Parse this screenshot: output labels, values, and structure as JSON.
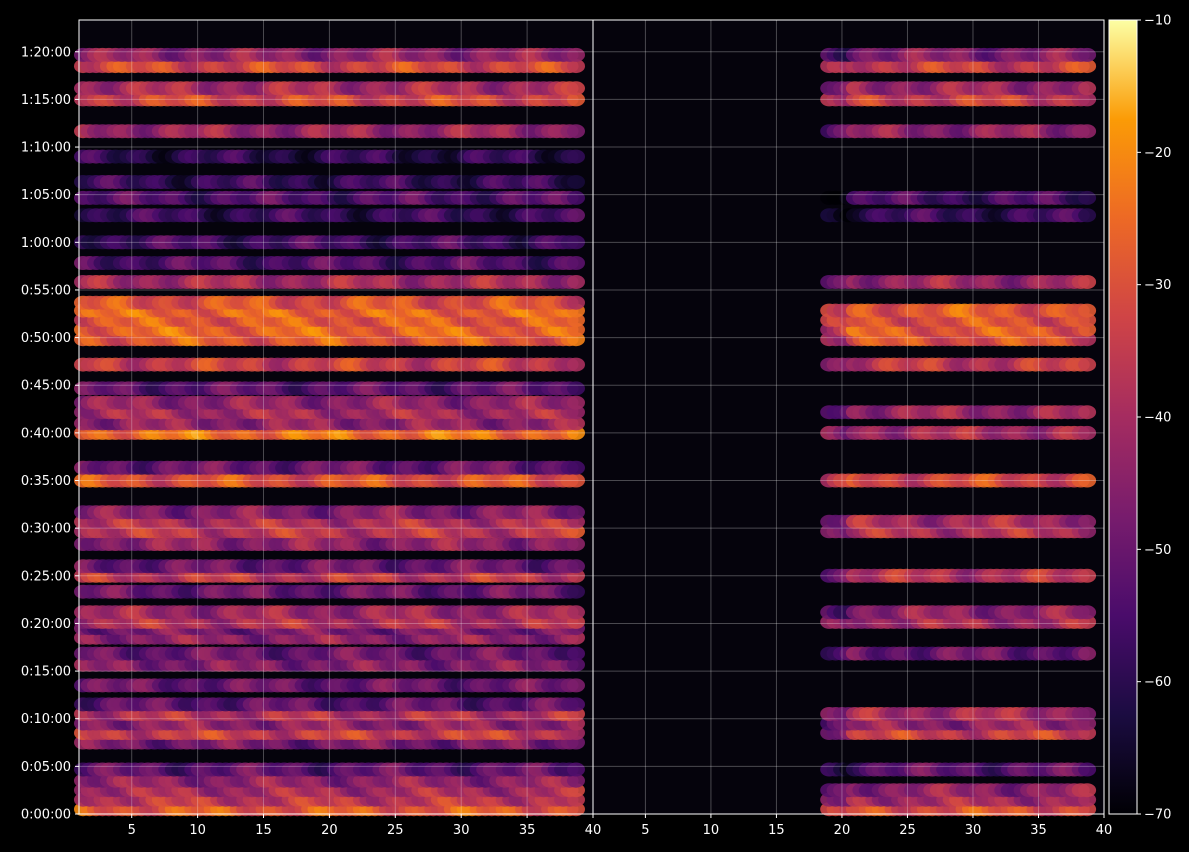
{
  "chart_data": {
    "type": "heatmap",
    "colormap": "inferno",
    "background": "#000000",
    "grid": true,
    "colorbar": {
      "position": "right",
      "range": [
        -70,
        -10
      ],
      "ticks": [
        {
          "value": -10,
          "label": "−10"
        },
        {
          "value": -20,
          "label": "−20"
        },
        {
          "value": -30,
          "label": "−30"
        },
        {
          "value": -40,
          "label": "−40"
        },
        {
          "value": -50,
          "label": "−50"
        },
        {
          "value": -60,
          "label": "−60"
        },
        {
          "value": -70,
          "label": "−70"
        }
      ]
    },
    "y_axis": {
      "unit": "time",
      "range_seconds": [
        0,
        5000
      ],
      "ticks": [
        {
          "value": 0,
          "label": "0:00:00"
        },
        {
          "value": 300,
          "label": "0:05:00"
        },
        {
          "value": 600,
          "label": "0:10:00"
        },
        {
          "value": 900,
          "label": "0:15:00"
        },
        {
          "value": 1200,
          "label": "0:20:00"
        },
        {
          "value": 1500,
          "label": "0:25:00"
        },
        {
          "value": 1800,
          "label": "0:30:00"
        },
        {
          "value": 2100,
          "label": "0:35:00"
        },
        {
          "value": 2400,
          "label": "0:40:00"
        },
        {
          "value": 2700,
          "label": "0:45:00"
        },
        {
          "value": 3000,
          "label": "0:50:00"
        },
        {
          "value": 3300,
          "label": "0:55:00"
        },
        {
          "value": 3600,
          "label": "1:00:00"
        },
        {
          "value": 3900,
          "label": "1:05:00"
        },
        {
          "value": 4200,
          "label": "1:10:00"
        },
        {
          "value": 4500,
          "label": "1:15:00"
        },
        {
          "value": 4800,
          "label": "1:20:00"
        }
      ]
    },
    "panels": [
      {
        "name": "left",
        "x_range": [
          1,
          40
        ],
        "x_ticks": [
          {
            "value": 5,
            "label": "5"
          },
          {
            "value": 10,
            "label": "10"
          },
          {
            "value": 15,
            "label": "15"
          },
          {
            "value": 20,
            "label": "20"
          },
          {
            "value": 25,
            "label": "25"
          },
          {
            "value": 30,
            "label": "30"
          },
          {
            "value": 35,
            "label": "35"
          },
          {
            "value": 40,
            "label": "40"
          }
        ],
        "columns": [
          1,
          39
        ],
        "bands": [
          {
            "t": 30,
            "level": -28
          },
          {
            "t": 90,
            "level": -36
          },
          {
            "t": 150,
            "level": -40
          },
          {
            "t": 210,
            "level": -44
          },
          {
            "t": 280,
            "level": -52
          },
          {
            "t": 450,
            "level": -48
          },
          {
            "t": 510,
            "level": -34
          },
          {
            "t": 570,
            "level": -44
          },
          {
            "t": 630,
            "level": -38
          },
          {
            "t": 690,
            "level": -52
          },
          {
            "t": 810,
            "level": -50
          },
          {
            "t": 940,
            "level": -46
          },
          {
            "t": 1010,
            "level": -50
          },
          {
            "t": 1110,
            "level": -44
          },
          {
            "t": 1170,
            "level": -48
          },
          {
            "t": 1210,
            "level": -38
          },
          {
            "t": 1270,
            "level": -42
          },
          {
            "t": 1400,
            "level": -50
          },
          {
            "t": 1500,
            "level": -36
          },
          {
            "t": 1560,
            "level": -50
          },
          {
            "t": 1700,
            "level": -44
          },
          {
            "t": 1780,
            "level": -36
          },
          {
            "t": 1840,
            "level": -38
          },
          {
            "t": 1900,
            "level": -46
          },
          {
            "t": 2100,
            "level": -30
          },
          {
            "t": 2180,
            "level": -50
          },
          {
            "t": 2400,
            "level": -24
          },
          {
            "t": 2460,
            "level": -44
          },
          {
            "t": 2530,
            "level": -40
          },
          {
            "t": 2590,
            "level": -44
          },
          {
            "t": 2680,
            "level": -52
          },
          {
            "t": 2830,
            "level": -34
          },
          {
            "t": 2990,
            "level": -28
          },
          {
            "t": 3050,
            "level": -26
          },
          {
            "t": 3110,
            "level": -28
          },
          {
            "t": 3170,
            "level": -26
          },
          {
            "t": 3220,
            "level": -30
          },
          {
            "t": 3350,
            "level": -40
          },
          {
            "t": 3470,
            "level": -54
          },
          {
            "t": 3600,
            "level": -56
          },
          {
            "t": 3770,
            "level": -58
          },
          {
            "t": 3880,
            "level": -54
          },
          {
            "t": 3980,
            "level": -58
          },
          {
            "t": 4140,
            "level": -60
          },
          {
            "t": 4300,
            "level": -42
          },
          {
            "t": 4500,
            "level": -32
          },
          {
            "t": 4570,
            "level": -40
          },
          {
            "t": 4710,
            "level": -32
          },
          {
            "t": 4780,
            "level": -44
          }
        ]
      },
      {
        "name": "right",
        "x_range": [
          1,
          40
        ],
        "x_ticks": [
          {
            "value": 5,
            "label": "5"
          },
          {
            "value": 10,
            "label": "10"
          },
          {
            "value": 15,
            "label": "15"
          },
          {
            "value": 20,
            "label": "20"
          },
          {
            "value": 25,
            "label": "25"
          },
          {
            "value": 30,
            "label": "30"
          },
          {
            "value": 35,
            "label": "35"
          },
          {
            "value": 40,
            "label": "40"
          }
        ],
        "columns": [
          19,
          39
        ],
        "bands": [
          {
            "t": 30,
            "level": -30
          },
          {
            "t": 90,
            "level": -40
          },
          {
            "t": 150,
            "level": -44
          },
          {
            "t": 280,
            "level": -52
          },
          {
            "t": 510,
            "level": -34
          },
          {
            "t": 570,
            "level": -44
          },
          {
            "t": 630,
            "level": -40
          },
          {
            "t": 1010,
            "level": -50
          },
          {
            "t": 1210,
            "level": -40
          },
          {
            "t": 1270,
            "level": -44
          },
          {
            "t": 1500,
            "level": -38
          },
          {
            "t": 1780,
            "level": -38
          },
          {
            "t": 1840,
            "level": -40
          },
          {
            "t": 2100,
            "level": -32
          },
          {
            "t": 2400,
            "level": -40
          },
          {
            "t": 2530,
            "level": -42
          },
          {
            "t": 2830,
            "level": -36
          },
          {
            "t": 2990,
            "level": -30
          },
          {
            "t": 3050,
            "level": -28
          },
          {
            "t": 3110,
            "level": -30
          },
          {
            "t": 3170,
            "level": -28
          },
          {
            "t": 3350,
            "level": -42
          },
          {
            "t": 3770,
            "level": -58
          },
          {
            "t": 3880,
            "level": -56
          },
          {
            "t": 4300,
            "level": -44
          },
          {
            "t": 4500,
            "level": -34
          },
          {
            "t": 4570,
            "level": -42
          },
          {
            "t": 4710,
            "level": -34
          },
          {
            "t": 4780,
            "level": -46
          }
        ]
      }
    ]
  }
}
